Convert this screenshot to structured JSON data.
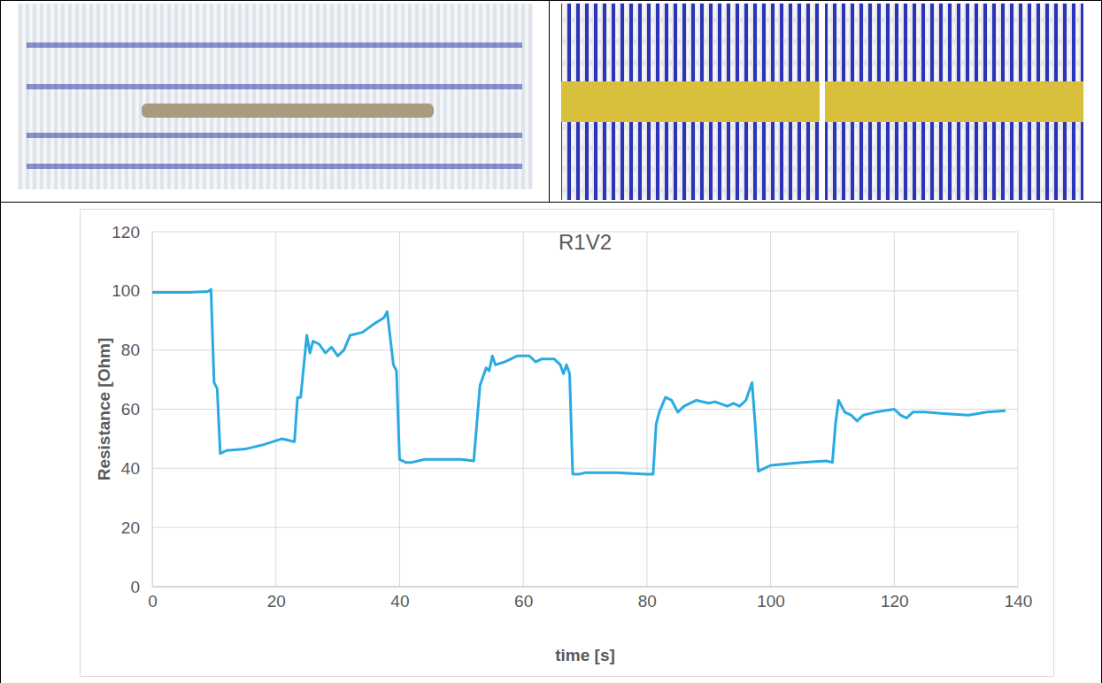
{
  "chart_data": {
    "type": "line",
    "title": "R1V2",
    "x_label": "time [s]",
    "y_label": "Resistance [Ohm]",
    "color": "#29abe2",
    "grid": true,
    "xlim": [
      0,
      140
    ],
    "xticks": [
      0,
      20,
      40,
      60,
      80,
      100,
      120,
      140
    ],
    "ylim": [
      0,
      120
    ],
    "yticks": [
      0,
      20,
      40,
      60,
      80,
      100,
      120
    ],
    "x": [
      0,
      3,
      6,
      9,
      9.5,
      10,
      10.5,
      11,
      12,
      15,
      18,
      21,
      23,
      23.5,
      24,
      25,
      25.5,
      26,
      27,
      28,
      29,
      30,
      31,
      32,
      34,
      36,
      37.5,
      38,
      38.5,
      39,
      39.5,
      40,
      41,
      42,
      44,
      46,
      50,
      52,
      53,
      54,
      54.5,
      55,
      55.5,
      57,
      59,
      61,
      62,
      63,
      65,
      66,
      66.5,
      67,
      67.5,
      68,
      69,
      70,
      75,
      80,
      81,
      81.5,
      82,
      83,
      84,
      85,
      86,
      88,
      90,
      91,
      93,
      94,
      95,
      96,
      97,
      97.5,
      98,
      99,
      100,
      105,
      109,
      110,
      110.5,
      111,
      112,
      113,
      114,
      115,
      117,
      120,
      121,
      122,
      123,
      125,
      128,
      132,
      135,
      138
    ],
    "values": [
      99.5,
      99.5,
      99.5,
      99.8,
      100.5,
      69,
      67,
      45,
      46,
      46.5,
      48,
      50,
      49,
      64,
      64,
      85,
      79,
      83,
      82,
      79,
      81,
      78,
      80,
      85,
      86,
      89,
      91,
      93,
      84,
      75,
      73,
      43,
      42,
      42,
      43,
      43,
      43,
      42.5,
      68,
      74,
      73,
      78,
      75,
      76,
      78,
      78,
      76,
      77,
      77,
      75,
      72,
      75,
      72,
      38,
      38,
      38.5,
      38.5,
      38,
      38,
      55,
      59,
      64,
      63,
      59,
      61,
      63,
      62,
      62.5,
      61,
      62,
      61,
      63,
      69,
      55,
      39,
      40,
      41,
      42,
      42.5,
      42,
      55,
      63,
      59,
      58,
      56,
      58,
      59,
      60,
      58,
      57,
      59,
      59,
      58.5,
      58,
      59,
      59.5
    ]
  }
}
